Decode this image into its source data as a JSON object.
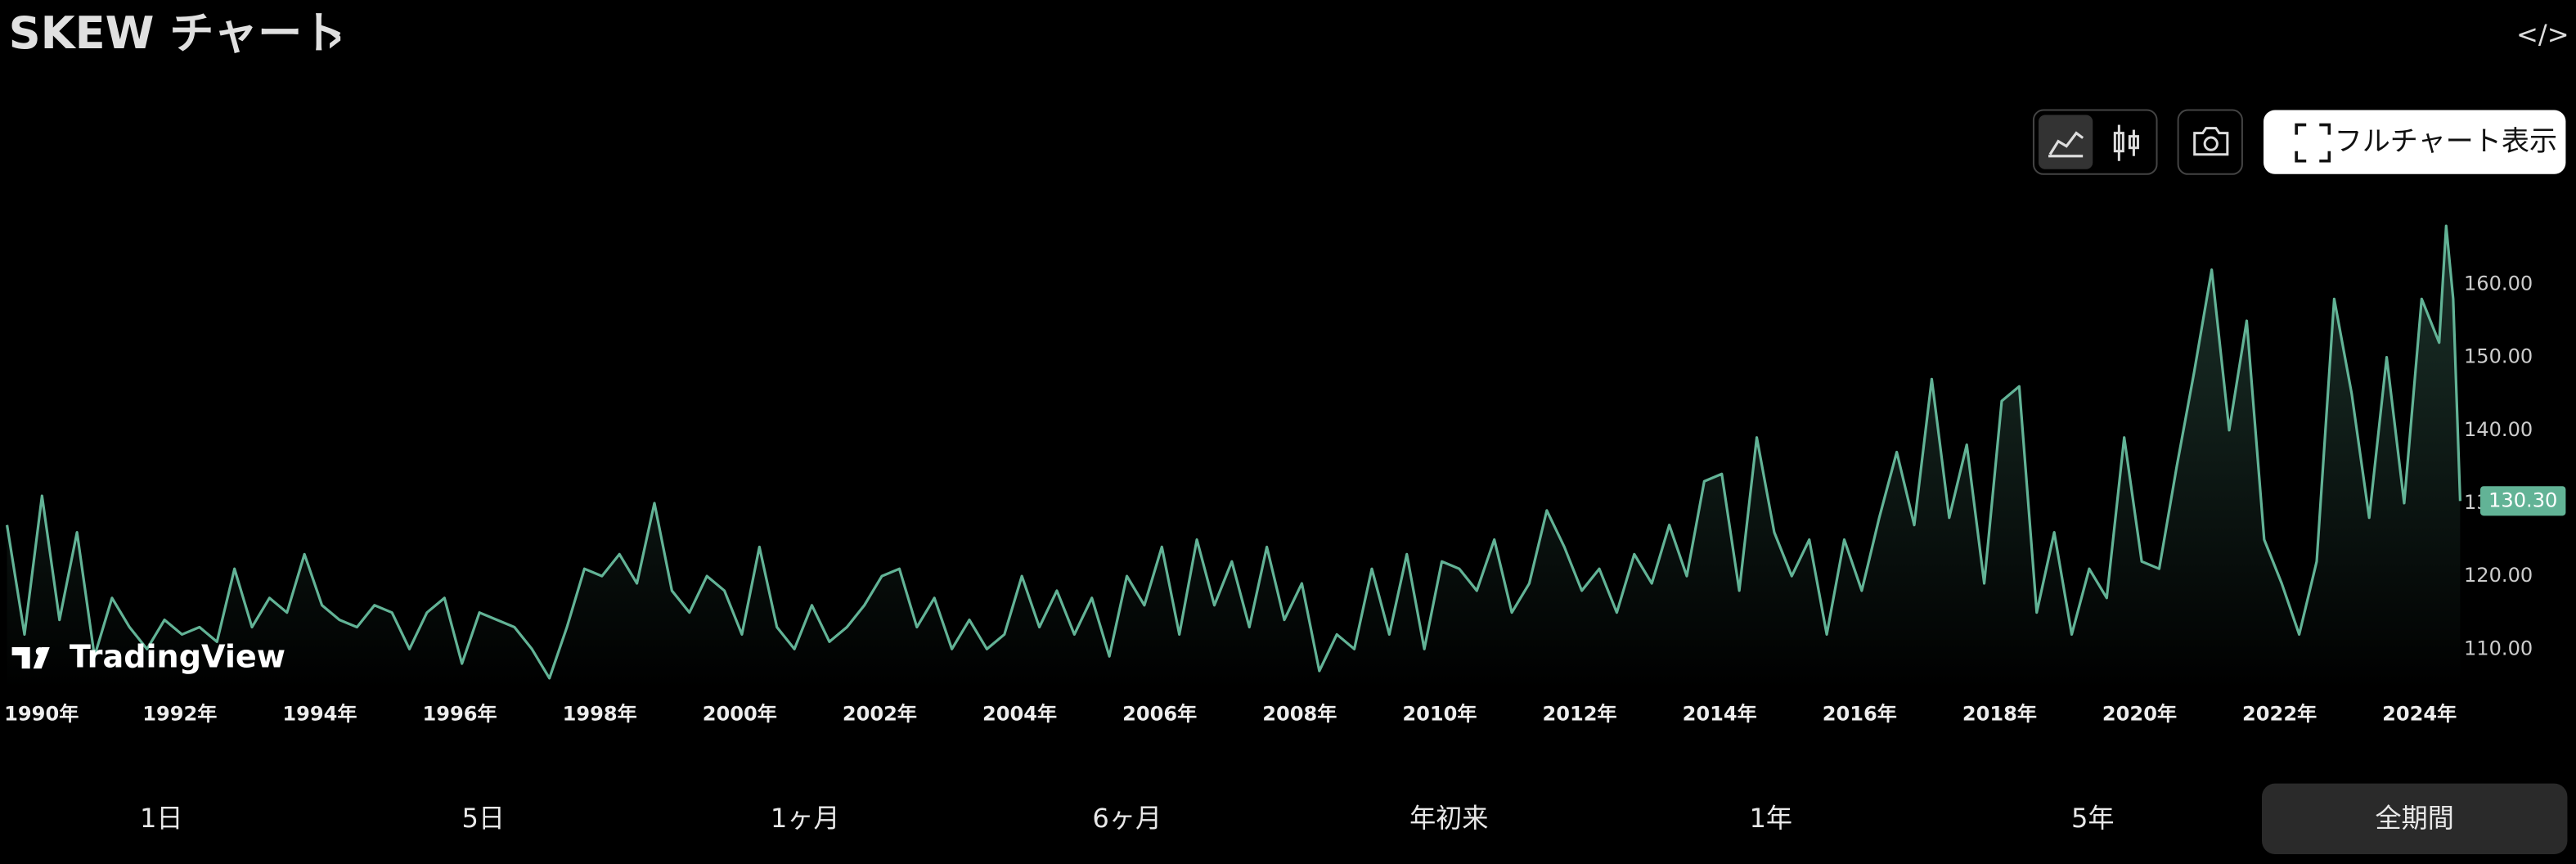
{
  "header": {
    "title": "SKEW チャート",
    "title_arrow": "›",
    "embed_icon": "</>"
  },
  "toolbar": {
    "fullchart": "フルチャート表示"
  },
  "logo": "TradingView",
  "ranges": [
    "1日",
    "5日",
    "1ヶ月",
    "6ヶ月",
    "年初来",
    "1年",
    "5年",
    "全期間"
  ],
  "selected_range": 7,
  "chart_data": {
    "type": "line",
    "color": "#62b396",
    "x": [
      1990,
      1990.25,
      1990.5,
      1990.75,
      1991,
      1991.25,
      1991.5,
      1991.75,
      1992,
      1992.25,
      1992.5,
      1992.75,
      1993,
      1993.25,
      1993.5,
      1993.75,
      1994,
      1994.25,
      1994.5,
      1994.75,
      1995,
      1995.25,
      1995.5,
      1995.75,
      1996,
      1996.25,
      1996.5,
      1996.75,
      1997,
      1997.25,
      1997.5,
      1997.75,
      1998,
      1998.25,
      1998.5,
      1998.75,
      1999,
      1999.25,
      1999.5,
      1999.75,
      2000,
      2000.25,
      2000.5,
      2000.75,
      2001,
      2001.25,
      2001.5,
      2001.75,
      2002,
      2002.25,
      2002.5,
      2002.75,
      2003,
      2003.25,
      2003.5,
      2003.75,
      2004,
      2004.25,
      2004.5,
      2004.75,
      2005,
      2005.25,
      2005.5,
      2005.75,
      2006,
      2006.25,
      2006.5,
      2006.75,
      2007,
      2007.25,
      2007.5,
      2007.75,
      2008,
      2008.25,
      2008.5,
      2008.75,
      2009,
      2009.25,
      2009.5,
      2009.75,
      2010,
      2010.25,
      2010.5,
      2010.75,
      2011,
      2011.25,
      2011.5,
      2011.75,
      2012,
      2012.25,
      2012.5,
      2012.75,
      2013,
      2013.25,
      2013.5,
      2013.75,
      2014,
      2014.25,
      2014.5,
      2014.75,
      2015,
      2015.25,
      2015.5,
      2015.75,
      2016,
      2016.25,
      2016.5,
      2016.75,
      2017,
      2017.25,
      2017.5,
      2017.75,
      2018,
      2018.25,
      2018.5,
      2018.75,
      2019,
      2019.25,
      2019.5,
      2019.75,
      2020,
      2020.25,
      2020.5,
      2020.75,
      2021,
      2021.25,
      2021.5,
      2021.75,
      2022,
      2022.25,
      2022.5,
      2022.75,
      2023,
      2023.25,
      2023.5,
      2023.75,
      2024,
      2024.25,
      2024.5,
      2024.75,
      2024.85,
      2024.95,
      2025.05
    ],
    "values": [
      127,
      112,
      131,
      114,
      126,
      109,
      117,
      113,
      110,
      114,
      112,
      113,
      111,
      121,
      113,
      117,
      115,
      123,
      116,
      114,
      113,
      116,
      115,
      110,
      115,
      117,
      108,
      115,
      114,
      113,
      110,
      106,
      113,
      121,
      120,
      123,
      119,
      130,
      118,
      115,
      120,
      118,
      112,
      124,
      113,
      110,
      116,
      111,
      113,
      116,
      120,
      121,
      113,
      117,
      110,
      114,
      110,
      112,
      120,
      113,
      118,
      112,
      117,
      109,
      120,
      116,
      124,
      112,
      125,
      116,
      122,
      113,
      124,
      114,
      119,
      107,
      112,
      110,
      121,
      112,
      123,
      110,
      122,
      121,
      118,
      125,
      115,
      119,
      129,
      124,
      118,
      121,
      115,
      123,
      119,
      127,
      120,
      133,
      134,
      118,
      139,
      126,
      120,
      125,
      112,
      125,
      118,
      128,
      137,
      127,
      147,
      128,
      138,
      119,
      144,
      146,
      115,
      126,
      112,
      121,
      117,
      139,
      122,
      121,
      135,
      148,
      162,
      140,
      155,
      125,
      119,
      112,
      122,
      158,
      145,
      128,
      150,
      130,
      158,
      152,
      168,
      158,
      130.3
    ],
    "last_value_label": "130.30",
    "xlim": [
      1990,
      2025.15
    ],
    "ylim": [
      104.4,
      169.7
    ],
    "xticks": [
      {
        "value": 1990,
        "label": "1990年"
      },
      {
        "value": 1992,
        "label": "1992年"
      },
      {
        "value": 1994,
        "label": "1994年"
      },
      {
        "value": 1996,
        "label": "1996年"
      },
      {
        "value": 1998,
        "label": "1998年"
      },
      {
        "value": 2000,
        "label": "2000年"
      },
      {
        "value": 2002,
        "label": "2002年"
      },
      {
        "value": 2004,
        "label": "2004年"
      },
      {
        "value": 2006,
        "label": "2006年"
      },
      {
        "value": 2008,
        "label": "2008年"
      },
      {
        "value": 2010,
        "label": "2010年"
      },
      {
        "value": 2012,
        "label": "2012年"
      },
      {
        "value": 2014,
        "label": "2014年"
      },
      {
        "value": 2016,
        "label": "2016年"
      },
      {
        "value": 2018,
        "label": "2018年"
      },
      {
        "value": 2020,
        "label": "2020年"
      },
      {
        "value": 2022,
        "label": "2022年"
      },
      {
        "value": 2024,
        "label": "2024年"
      }
    ],
    "yticks": [
      {
        "value": 110,
        "label": "110.00"
      },
      {
        "value": 120,
        "label": "120.00"
      },
      {
        "value": 130,
        "label": "130.00"
      },
      {
        "value": 140,
        "label": "140.00"
      },
      {
        "value": 150,
        "label": "150.00"
      },
      {
        "value": 160,
        "label": "160.00"
      }
    ]
  }
}
